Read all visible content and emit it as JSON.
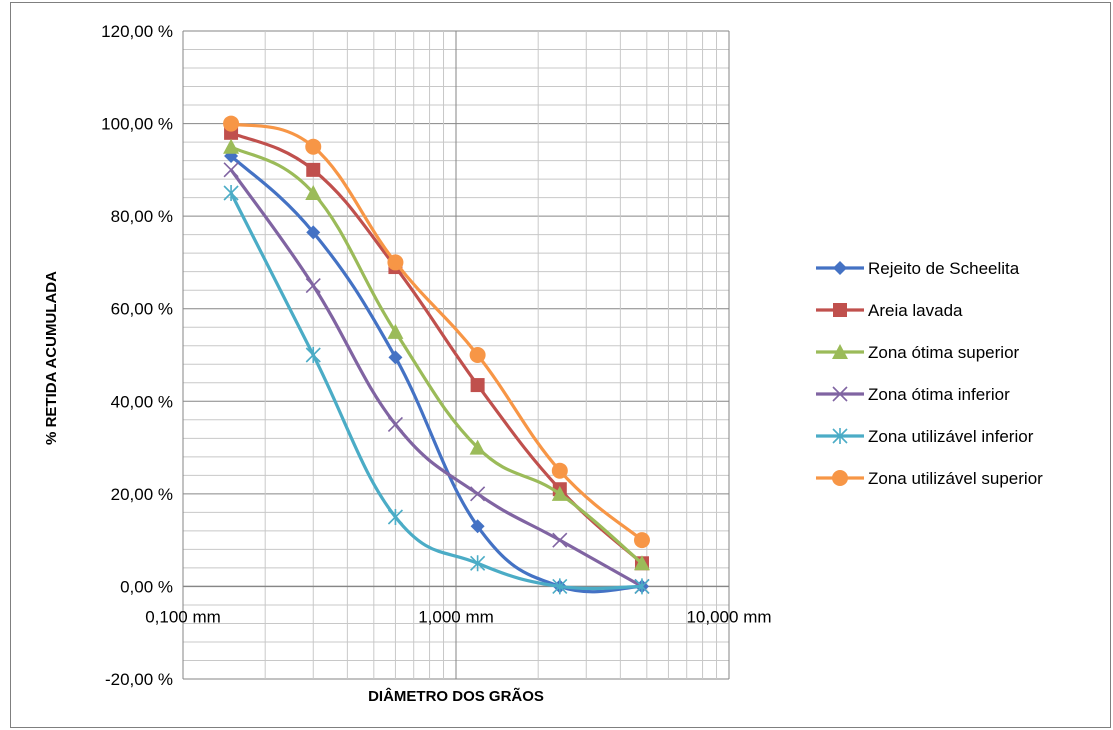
{
  "chart_data": {
    "type": "line",
    "xlabel": "DIÂMETRO DOS GRÃOS",
    "ylabel": "% RETIDA ACUMULADA",
    "x_scale": "log",
    "xlim": [
      0.1,
      10
    ],
    "ylim": [
      -20,
      120
    ],
    "x_ticks": [
      0.1,
      1,
      10
    ],
    "x_tick_labels": [
      "0,100 mm",
      "1,000 mm",
      "10,000 mm"
    ],
    "y_ticks": [
      -20,
      0,
      20,
      40,
      60,
      80,
      100,
      120
    ],
    "y_tick_labels": [
      "-20,00 %",
      "0,00 %",
      "20,00 %",
      "40,00 %",
      "60,00 %",
      "80,00 %",
      "100,00 %",
      "120,00 %"
    ],
    "grid": true,
    "legend_position": "right",
    "x": [
      0.15,
      0.3,
      0.6,
      1.2,
      2.4,
      4.8
    ],
    "series": [
      {
        "name": "Rejeito de Scheelita",
        "color": "#4472c4",
        "marker": "diamond",
        "values": [
          93,
          76.5,
          49.5,
          13,
          0,
          0
        ]
      },
      {
        "name": "Areia lavada",
        "color": "#c0504d",
        "marker": "square",
        "values": [
          98,
          90,
          69,
          43.5,
          21,
          5
        ]
      },
      {
        "name": "Zona ótima superior",
        "color": "#9bbb59",
        "marker": "triangle",
        "values": [
          95,
          85,
          55,
          30,
          20,
          5
        ]
      },
      {
        "name": "Zona ótima inferior",
        "color": "#8064a2",
        "marker": "x",
        "values": [
          90,
          65,
          35,
          20,
          10,
          0
        ]
      },
      {
        "name": "Zona utilizável inferior",
        "color": "#4bacc6",
        "marker": "asterisk",
        "values": [
          85,
          50,
          15,
          5,
          0,
          0
        ]
      },
      {
        "name": "Zona utilizável superior",
        "color": "#f79646",
        "marker": "circle",
        "values": [
          100,
          95,
          70,
          50,
          25,
          10
        ]
      }
    ]
  }
}
